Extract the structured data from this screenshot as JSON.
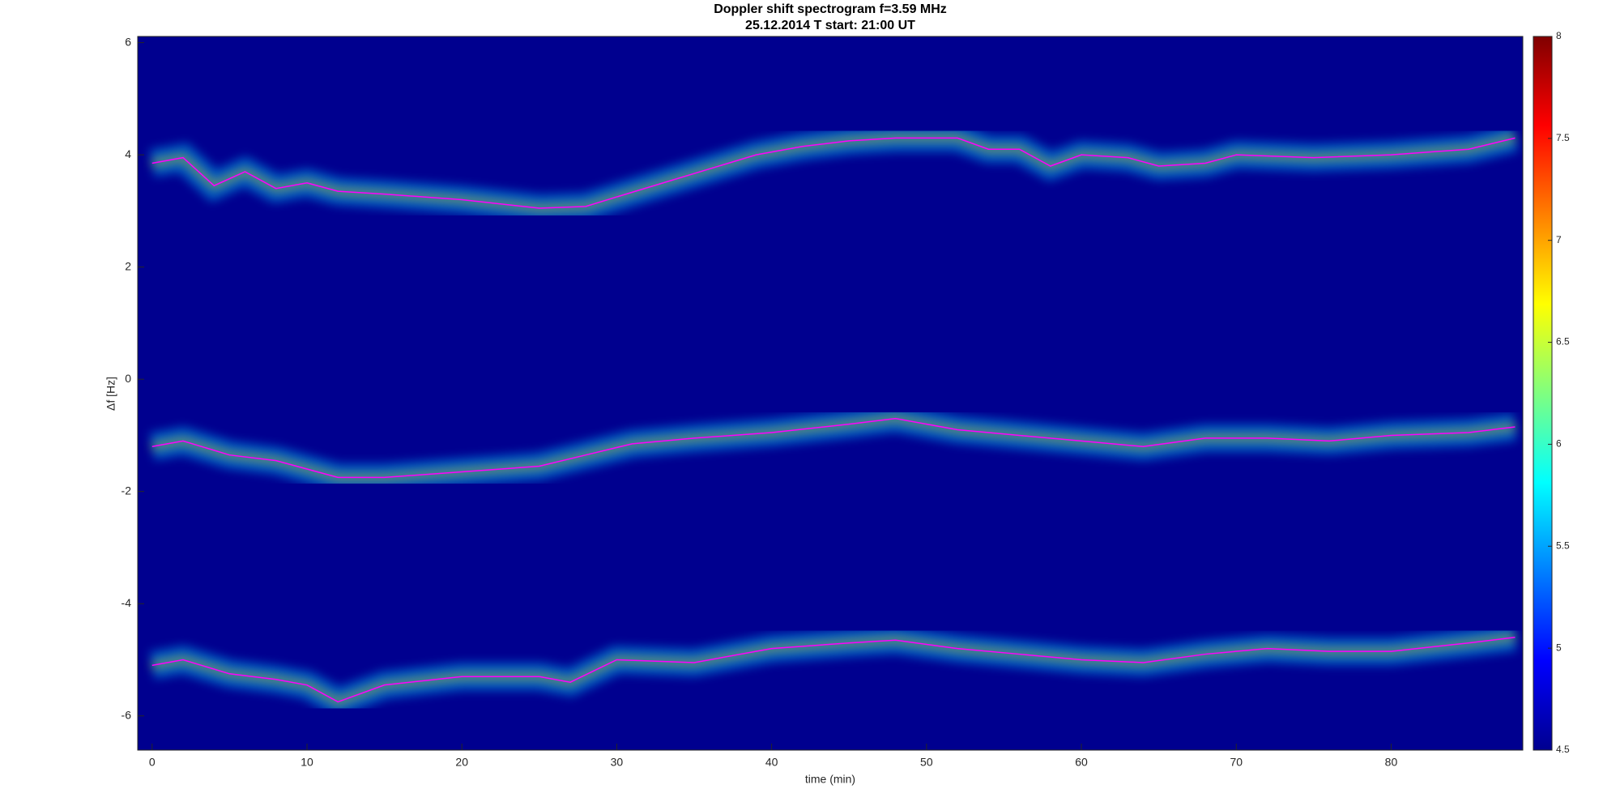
{
  "chart_data": {
    "type": "spectrogram",
    "title": "Doppler shift spectrogram f=3.59 MHz",
    "subtitle": "25.12.2014   T start: 21:00 UT",
    "x_label": "time (min)",
    "y_label": "Δf [Hz]",
    "xlim": [
      -0.93,
      88.5
    ],
    "xticks": [
      0,
      10,
      20,
      30,
      40,
      50,
      60,
      70,
      80
    ],
    "ylim": [
      -6.61,
      6.11
    ],
    "yticks": [
      -6,
      -4,
      -2,
      0,
      2,
      4,
      6
    ],
    "grid": false,
    "background_color": "#00008f",
    "colorbar": {
      "lim": [
        4.5,
        8
      ],
      "ticks": [
        4.5,
        5,
        5.5,
        6,
        6.5,
        7,
        7.5,
        8
      ]
    },
    "series": [
      {
        "color": "#ff00ff",
        "x": [
          0,
          2,
          4,
          6,
          8,
          10,
          12,
          15,
          20,
          25,
          28,
          30,
          33,
          36,
          39,
          42,
          45,
          48,
          52,
          54,
          56,
          58,
          60,
          63,
          65,
          68,
          70,
          75,
          80,
          85,
          88
        ],
        "values": [
          3.85,
          3.95,
          3.45,
          3.7,
          3.4,
          3.5,
          3.35,
          3.3,
          3.2,
          3.05,
          3.08,
          3.25,
          3.5,
          3.75,
          4.0,
          4.15,
          4.25,
          4.3,
          4.3,
          4.1,
          4.1,
          3.8,
          4.0,
          3.95,
          3.8,
          3.85,
          4.0,
          3.95,
          4.0,
          4.1,
          4.3
        ]
      },
      {
        "color": "#ff00ff",
        "x": [
          0,
          2,
          5,
          8,
          12,
          15,
          20,
          25,
          28,
          31,
          35,
          40,
          45,
          48,
          52,
          56,
          60,
          64,
          68,
          72,
          76,
          80,
          85,
          88
        ],
        "values": [
          -1.2,
          -1.1,
          -1.35,
          -1.45,
          -1.75,
          -1.75,
          -1.65,
          -1.55,
          -1.35,
          -1.15,
          -1.05,
          -0.95,
          -0.8,
          -0.7,
          -0.9,
          -1.0,
          -1.1,
          -1.2,
          -1.05,
          -1.05,
          -1.1,
          -1.0,
          -0.95,
          -0.85
        ]
      },
      {
        "color": "#ff00ff",
        "x": [
          0,
          2,
          5,
          8,
          10,
          12,
          15,
          20,
          25,
          27,
          30,
          35,
          40,
          45,
          48,
          52,
          56,
          60,
          64,
          68,
          72,
          76,
          80,
          85,
          88
        ],
        "values": [
          -5.1,
          -5.0,
          -5.25,
          -5.35,
          -5.45,
          -5.75,
          -5.45,
          -5.3,
          -5.3,
          -5.4,
          -5.0,
          -5.05,
          -4.8,
          -4.7,
          -4.65,
          -4.8,
          -4.9,
          -5.0,
          -5.05,
          -4.9,
          -4.8,
          -4.85,
          -4.85,
          -4.7,
          -4.6
        ]
      }
    ]
  }
}
